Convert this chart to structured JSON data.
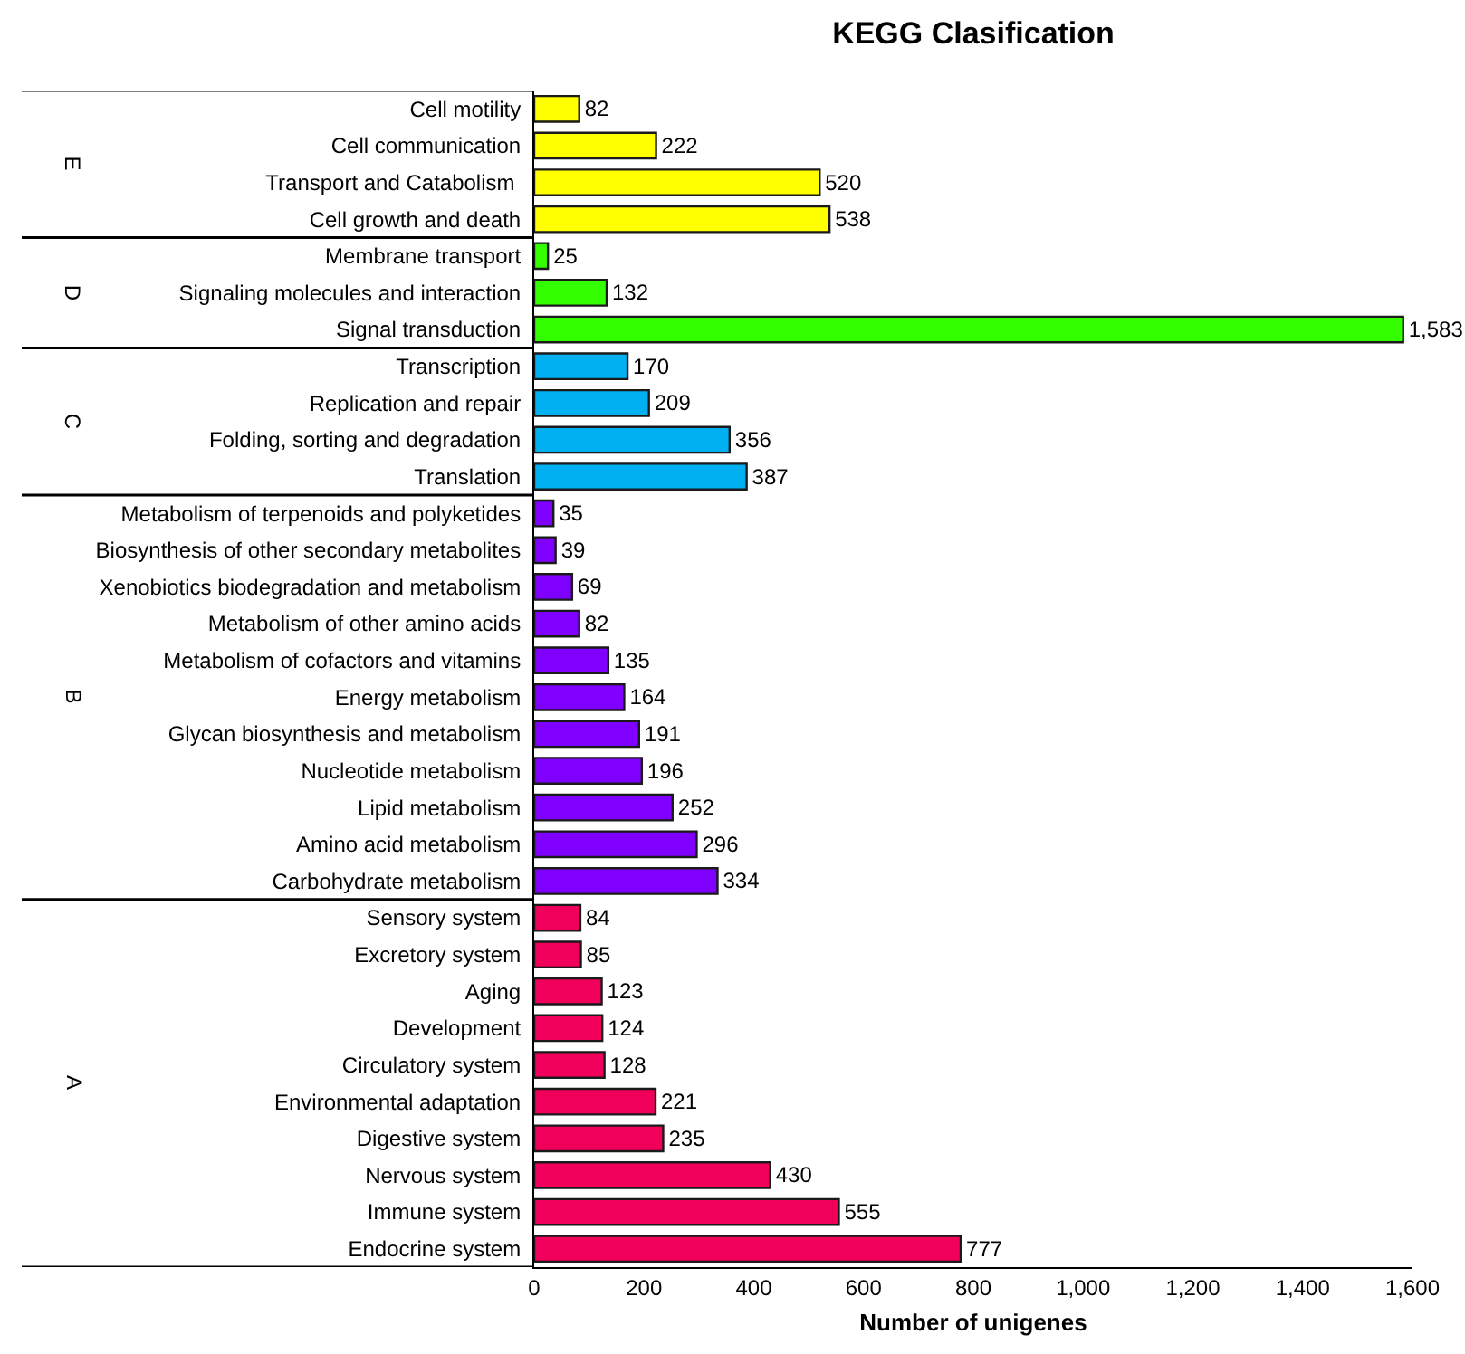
{
  "chart_data": {
    "type": "bar",
    "orientation": "horizontal",
    "title": "KEGG Clasification",
    "xlabel": "Number of unigenes",
    "categories": [
      "Cell motility",
      "Cell communication",
      "Transport and Catabolism ",
      "Cell growth and death",
      "Membrane transport",
      "Signaling molecules and interaction",
      "Signal transduction",
      "Transcription",
      "Replication and repair",
      "Folding, sorting and degradation",
      "Translation",
      "Metabolism of terpenoids and polyketides",
      "Biosynthesis of other secondary metabolites",
      "Xenobiotics biodegradation and metabolism",
      "Metabolism of other amino acids",
      "Metabolism of cofactors and vitamins",
      "Energy metabolism",
      "Glycan biosynthesis and metabolism",
      "Nucleotide metabolism",
      "Lipid metabolism",
      "Amino acid metabolism",
      "Carbohydrate metabolism",
      "Sensory system",
      "Excretory system",
      "Aging",
      "Development",
      "Circulatory system",
      "Environmental adaptation",
      "Digestive system",
      "Nervous system",
      "Immune system",
      "Endocrine system"
    ],
    "values": [
      82,
      222,
      520,
      538,
      25,
      132,
      1583,
      170,
      209,
      356,
      387,
      35,
      39,
      69,
      82,
      135,
      164,
      191,
      196,
      252,
      296,
      334,
      84,
      85,
      123,
      124,
      128,
      221,
      235,
      430,
      555,
      777
    ],
    "value_labels": [
      "82",
      "222",
      "520",
      "538",
      "25",
      "132",
      "1,583",
      "170",
      "209",
      "356",
      "387",
      "35",
      "39",
      "69",
      "82",
      "135",
      "164",
      "191",
      "196",
      "252",
      "296",
      "334",
      "84",
      "85",
      "123",
      "124",
      "128",
      "221",
      "235",
      "430",
      "555",
      "777"
    ],
    "colors": [
      "#ffff00",
      "#ffff00",
      "#ffff00",
      "#ffff00",
      "#33ff00",
      "#33ff00",
      "#33ff00",
      "#00b0f0",
      "#00b0f0",
      "#00b0f0",
      "#00b0f0",
      "#7f00ff",
      "#7f00ff",
      "#7f00ff",
      "#7f00ff",
      "#7f00ff",
      "#7f00ff",
      "#7f00ff",
      "#7f00ff",
      "#7f00ff",
      "#7f00ff",
      "#7f00ff",
      "#f0005a",
      "#f0005a",
      "#f0005a",
      "#f0005a",
      "#f0005a",
      "#f0005a",
      "#f0005a",
      "#f0005a",
      "#f0005a",
      "#f0005a"
    ],
    "xlim": [
      0,
      1600
    ],
    "xticks": [
      0,
      200,
      400,
      600,
      800,
      {
        "value": 1000,
        "label": "1,000"
      },
      {
        "value": 1200,
        "label": "1,200"
      },
      {
        "value": 1400,
        "label": "1,400"
      },
      {
        "value": 1600,
        "label": "1,600"
      }
    ],
    "annotations": [
      "E",
      "D",
      "C",
      "B",
      "A"
    ]
  }
}
